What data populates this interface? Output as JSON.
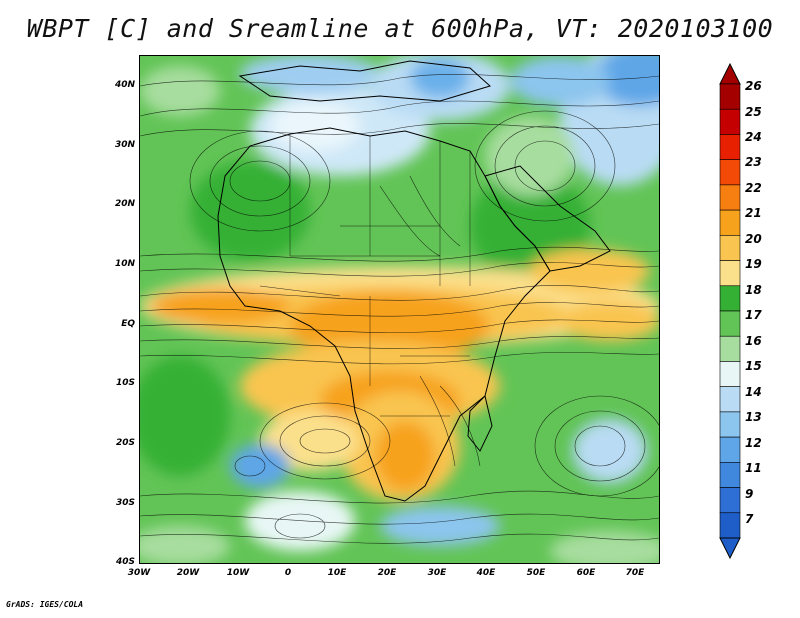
{
  "title": "WBPT [C] and Sreamline at 600hPa, VT: 2020103100",
  "credit": "GrADS: IGES/COLA",
  "map": {
    "projection": "lat-lon",
    "lon_range": [
      -30,
      75
    ],
    "lat_range": [
      -40,
      45
    ],
    "lat_labels": [
      "40N",
      "30N",
      "20N",
      "10N",
      "EQ",
      "10S",
      "20S",
      "30S",
      "40S"
    ],
    "lat_values": [
      40,
      30,
      20,
      10,
      0,
      -10,
      -20,
      -30,
      -40
    ],
    "lon_labels": [
      "30W",
      "20W",
      "10W",
      "0",
      "10E",
      "20E",
      "30E",
      "40E",
      "50E",
      "60E",
      "70E"
    ],
    "lon_values": [
      -30,
      -20,
      -10,
      0,
      10,
      20,
      30,
      40,
      50,
      60,
      70
    ],
    "overlay": "streamlines and coastlines/country borders"
  },
  "colorbar": {
    "labels": [
      "26",
      "25",
      "24",
      "23",
      "22",
      "21",
      "20",
      "19",
      "18",
      "17",
      "16",
      "15",
      "14",
      "13",
      "12",
      "11",
      "9",
      "7"
    ],
    "colors": [
      "#a50000",
      "#c40000",
      "#e62000",
      "#f44a08",
      "#f77e10",
      "#f7a21c",
      "#f9c550",
      "#fbe08c",
      "#34b034",
      "#62c456",
      "#a7dd9f",
      "#e8f7f5",
      "#b9dcf4",
      "#8cc5ee",
      "#5ea6e7",
      "#3f88dd",
      "#2d6fd4",
      "#1f5ec8"
    ]
  }
}
